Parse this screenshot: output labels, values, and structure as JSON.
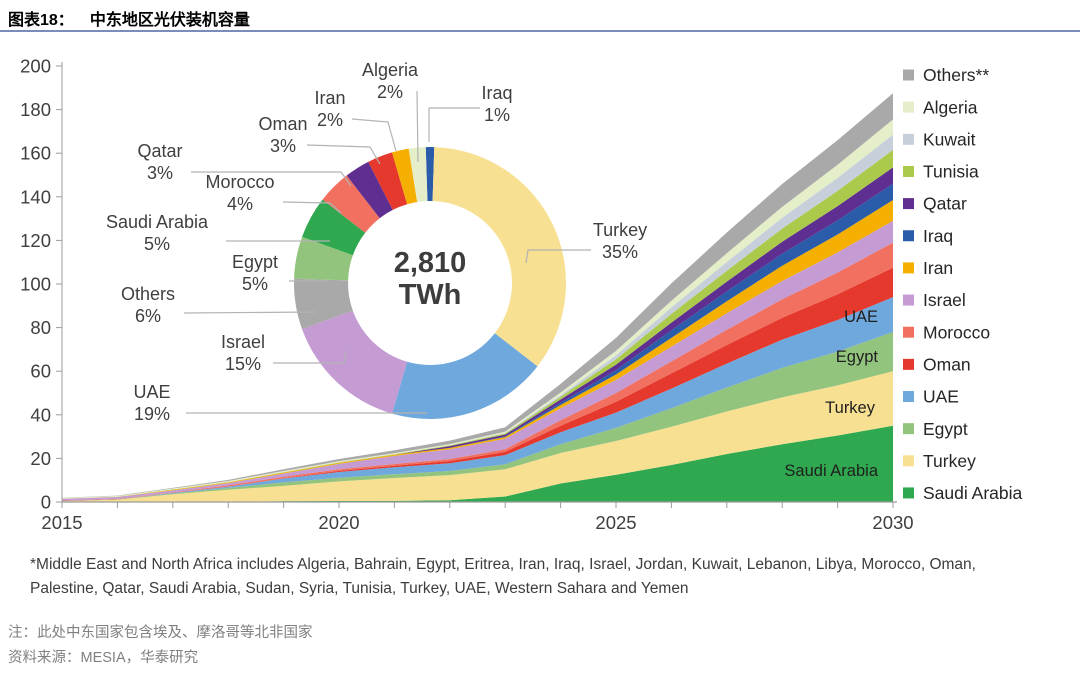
{
  "header": {
    "figure_label": "图表18：",
    "title": "中东地区光伏装机容量"
  },
  "chart_data": [
    {
      "type": "pie",
      "subtype": "donut",
      "center_value": "2,810",
      "center_unit": "TWh",
      "start_offset_deg": -1.8,
      "slices": [
        {
          "label": "Iraq",
          "pct": 1,
          "color": "#2A5CAA"
        },
        {
          "label": "Turkey",
          "pct": 35,
          "color": "#F8E092"
        },
        {
          "label": "UAE",
          "pct": 19,
          "color": "#6FA8DC"
        },
        {
          "label": "Israel",
          "pct": 15,
          "color": "#C49BD3"
        },
        {
          "label": "Others",
          "pct": 6,
          "color": "#A9A9A9"
        },
        {
          "label": "Egypt",
          "pct": 5,
          "color": "#93C47D"
        },
        {
          "label": "Saudi Arabia",
          "pct": 5,
          "color": "#2FA84F"
        },
        {
          "label": "Morocco",
          "pct": 4,
          "color": "#F1705F"
        },
        {
          "label": "Qatar",
          "pct": 3,
          "color": "#5E2F91"
        },
        {
          "label": "Oman",
          "pct": 3,
          "color": "#E5392E"
        },
        {
          "label": "Iran",
          "pct": 2,
          "color": "#F5AF00"
        },
        {
          "label": "Algeria",
          "pct": 2,
          "color": "#E4EEC8"
        }
      ]
    },
    {
      "type": "area",
      "stacked": true,
      "x": [
        2015,
        2016,
        2017,
        2018,
        2019,
        2020,
        2021,
        2022,
        2023,
        2024,
        2025,
        2026,
        2027,
        2028,
        2029,
        2030
      ],
      "x_tick_labels": [
        "2015",
        "2020",
        "2025",
        "2030"
      ],
      "ylim": [
        0,
        200
      ],
      "y_tick_step": 20,
      "series_bottom_to_top": [
        {
          "name": "Saudi Arabia",
          "color": "#2FA84F",
          "values": [
            0.02,
            0.03,
            0.05,
            0.1,
            0.4,
            0.45,
            0.5,
            0.8,
            2.5,
            8.5,
            12.5,
            17,
            22,
            26.5,
            30.5,
            35
          ]
        },
        {
          "name": "Turkey",
          "color": "#F8E092",
          "values": [
            0.25,
            1,
            3.5,
            5.5,
            7,
            9,
            10.5,
            11.5,
            12.5,
            14,
            15.5,
            17.5,
            19.5,
            21.5,
            23,
            25
          ]
        },
        {
          "name": "Egypt",
          "color": "#93C47D",
          "values": [
            0.1,
            0.15,
            0.35,
            0.8,
            1.6,
            1.7,
            1.75,
            1.9,
            2.3,
            4,
            6,
            8.5,
            11,
            13.5,
            15.5,
            18
          ]
        },
        {
          "name": "UAE",
          "color": "#6FA8DC",
          "values": [
            0.03,
            0.03,
            0.3,
            0.6,
            1.8,
            2.6,
            3.2,
            3.6,
            4.2,
            5.5,
            7,
            9,
            11,
            13,
            14.5,
            16
          ]
        },
        {
          "name": "Oman",
          "color": "#E5392E",
          "values": [
            0.01,
            0.02,
            0.03,
            0.05,
            0.1,
            0.5,
            0.7,
            1,
            1.5,
            3,
            5,
            7,
            8.5,
            10,
            11.8,
            13.5
          ]
        },
        {
          "name": "Morocco",
          "color": "#F1705F",
          "values": [
            0.2,
            0.2,
            0.2,
            0.6,
            0.7,
            0.75,
            0.8,
            0.9,
            1.2,
            2.5,
            4,
            5.5,
            7,
            8.5,
            10,
            11.5
          ]
        },
        {
          "name": "Israel",
          "color": "#C49BD3",
          "values": [
            0.8,
            0.85,
            0.9,
            1,
            1.5,
            2.5,
            3.7,
            4.5,
            4.8,
            5.5,
            6,
            6.8,
            7.6,
            8.4,
            9.2,
            10
          ]
        },
        {
          "name": "Iran",
          "color": "#F5AF00",
          "values": [
            0.05,
            0.05,
            0.3,
            0.35,
            0.4,
            0.45,
            0.5,
            0.6,
            0.8,
            1.5,
            2.5,
            4,
            5.5,
            7,
            8.2,
            9.5
          ]
        },
        {
          "name": "Iraq",
          "color": "#2A5CAA",
          "values": [
            0,
            0,
            0,
            0,
            0,
            0.01,
            0.02,
            0.05,
            0.3,
            1,
            2,
            3.5,
            4.5,
            5.5,
            6.5,
            7.5
          ]
        },
        {
          "name": "Qatar",
          "color": "#5E2F91",
          "values": [
            0,
            0,
            0,
            0,
            0,
            0,
            0.01,
            0.8,
            0.8,
            1.5,
            2.5,
            3.5,
            4.5,
            5.5,
            6.5,
            7.5
          ]
        },
        {
          "name": "Tunisia",
          "color": "#ABC94A",
          "values": [
            0.05,
            0.05,
            0.1,
            0.1,
            0.15,
            0.2,
            0.2,
            0.3,
            0.5,
            1.2,
            2.5,
            4,
            5,
            6,
            7,
            8
          ]
        },
        {
          "name": "Kuwait",
          "color": "#C7CFDB",
          "values": [
            0.02,
            0.02,
            0.05,
            0.1,
            0.1,
            0.1,
            0.1,
            0.1,
            0.3,
            0.8,
            1.8,
            3,
            4,
            5,
            6,
            7
          ]
        },
        {
          "name": "Algeria",
          "color": "#E4EEC8",
          "values": [
            0.3,
            0.35,
            0.4,
            0.45,
            0.45,
            0.45,
            0.45,
            0.5,
            0.6,
            1.2,
            2,
            3,
            4,
            5,
            6,
            7
          ]
        },
        {
          "name": "Others",
          "color": "#A9A9A9",
          "values": [
            0.1,
            0.2,
            0.3,
            0.5,
            0.8,
            1,
            1.3,
            1.6,
            2,
            4,
            6,
            8,
            9.5,
            10.5,
            11.3,
            12
          ]
        }
      ],
      "inline_labels": [
        "UAE",
        "Egypt",
        "Turkey",
        "Saudi Arabia"
      ]
    }
  ],
  "legend": {
    "items": [
      {
        "label": "Others**",
        "color": "#A9A9A9"
      },
      {
        "label": "Algeria",
        "color": "#E4EEC8"
      },
      {
        "label": "Kuwait",
        "color": "#C7CFDB"
      },
      {
        "label": "Tunisia",
        "color": "#ABC94A"
      },
      {
        "label": "Qatar",
        "color": "#5E2F91"
      },
      {
        "label": "Iraq",
        "color": "#2A5CAA"
      },
      {
        "label": "Iran",
        "color": "#F5AF00"
      },
      {
        "label": "Israel",
        "color": "#C49BD3"
      },
      {
        "label": "Morocco",
        "color": "#F1705F"
      },
      {
        "label": "Oman",
        "color": "#E5392E"
      },
      {
        "label": "UAE",
        "color": "#6FA8DC"
      },
      {
        "label": "Egypt",
        "color": "#93C47D"
      },
      {
        "label": "Turkey",
        "color": "#F8E092"
      },
      {
        "label": "Saudi Arabia",
        "color": "#2FA84F"
      }
    ]
  },
  "footnote": "*Middle East and North Africa includes Algeria, Bahrain, Egypt, Eritrea, Iran, Iraq, Israel, Jordan, Kuwait, Lebanon, Libya, Morocco, Oman, Palestine, Qatar, Saudi Arabia, Sudan, Syria, Tunisia, Turkey, UAE, Western Sahara and Yemen",
  "notes": {
    "note": "注：此处中东国家包含埃及、摩洛哥等北非国家",
    "source": "资料来源：MESIA，华泰研究"
  }
}
